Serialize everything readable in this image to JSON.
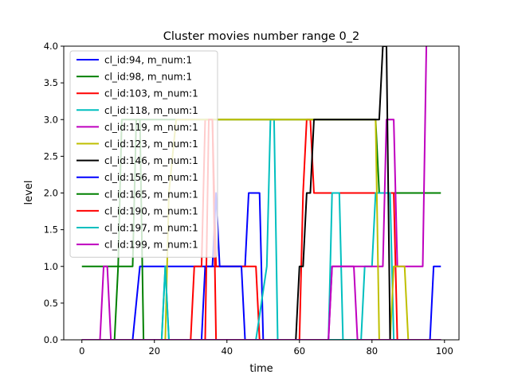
{
  "chart_data": {
    "type": "line",
    "title": "Cluster movies number range 0_2",
    "xlabel": "time",
    "ylabel": "level",
    "xlim": [
      -5,
      104
    ],
    "ylim": [
      0,
      4
    ],
    "xticks": [
      0,
      20,
      40,
      60,
      80,
      100
    ],
    "yticks": [
      0.0,
      0.5,
      1.0,
      1.5,
      2.0,
      2.5,
      3.0,
      3.5,
      4.0
    ],
    "xtick_labels": [
      "0",
      "20",
      "40",
      "60",
      "80",
      "100"
    ],
    "ytick_labels": [
      "0.0",
      "0.5",
      "1.0",
      "1.5",
      "2.0",
      "2.5",
      "3.0",
      "3.5",
      "4.0"
    ],
    "grid": false,
    "legend": "upper-left",
    "series": [
      {
        "name": "cl_id:94, m_num:1",
        "color": "#0000ff",
        "points": [
          [
            0,
            0
          ],
          [
            14,
            0
          ],
          [
            16,
            1
          ],
          [
            45,
            1
          ],
          [
            46,
            2
          ],
          [
            49,
            2
          ],
          [
            50,
            0
          ],
          [
            96,
            0
          ],
          [
            97,
            1
          ],
          [
            99,
            1
          ]
        ]
      },
      {
        "name": "cl_id:98, m_num:1",
        "color": "#008000",
        "points": [
          [
            0,
            1
          ],
          [
            10,
            1
          ],
          [
            11,
            3
          ],
          [
            81,
            3
          ],
          [
            82,
            2
          ],
          [
            99,
            2
          ]
        ]
      },
      {
        "name": "cl_id:103, m_num:1",
        "color": "#ff0000",
        "points": [
          [
            0,
            0
          ],
          [
            30,
            0
          ],
          [
            31,
            1
          ],
          [
            33,
            1
          ],
          [
            34,
            3
          ],
          [
            36,
            3
          ],
          [
            37,
            1
          ],
          [
            48,
            1
          ],
          [
            49,
            0
          ],
          [
            60,
            0
          ],
          [
            61,
            2
          ],
          [
            62,
            3
          ],
          [
            63,
            3
          ],
          [
            64,
            2
          ],
          [
            86,
            2
          ],
          [
            87,
            0
          ],
          [
            99,
            0
          ]
        ]
      },
      {
        "name": "cl_id:118, m_num:1",
        "color": "#00bfbf",
        "points": [
          [
            0,
            0
          ],
          [
            22,
            0
          ],
          [
            23,
            1
          ],
          [
            24,
            0
          ],
          [
            48,
            0
          ],
          [
            51,
            1
          ],
          [
            52,
            3
          ],
          [
            53,
            3
          ],
          [
            54,
            0
          ],
          [
            68,
            0
          ],
          [
            69,
            2
          ],
          [
            71,
            2
          ],
          [
            72,
            0
          ],
          [
            77,
            0
          ],
          [
            78,
            1
          ],
          [
            80,
            1
          ],
          [
            81,
            2
          ],
          [
            85,
            2
          ],
          [
            86,
            0
          ],
          [
            99,
            0
          ]
        ]
      },
      {
        "name": "cl_id:119, m_num:1",
        "color": "#bf00bf",
        "points": [
          [
            0,
            0
          ],
          [
            5,
            0
          ],
          [
            6,
            1
          ],
          [
            7,
            1
          ],
          [
            8,
            0
          ],
          [
            68,
            0
          ],
          [
            69,
            1
          ],
          [
            78,
            1
          ],
          [
            79,
            1
          ],
          [
            83,
            1
          ],
          [
            84,
            3
          ],
          [
            86,
            3
          ],
          [
            87,
            1
          ],
          [
            94,
            1
          ],
          [
            95,
            4
          ]
        ]
      },
      {
        "name": "cl_id:123, m_num:1",
        "color": "#bfbf00",
        "points": [
          [
            0,
            0
          ],
          [
            23,
            0
          ],
          [
            24,
            2
          ],
          [
            26,
            3
          ],
          [
            81,
            3
          ],
          [
            82,
            0
          ],
          [
            85,
            0
          ],
          [
            86,
            1
          ],
          [
            89,
            1
          ],
          [
            90,
            0
          ],
          [
            99,
            0
          ]
        ]
      },
      {
        "name": "cl_id:146, m_num:1",
        "color": "#000000",
        "points": [
          [
            0,
            0
          ],
          [
            59,
            0
          ],
          [
            60,
            1
          ],
          [
            61,
            1
          ],
          [
            62,
            2
          ],
          [
            63,
            2
          ],
          [
            64,
            3
          ],
          [
            82,
            3
          ],
          [
            83,
            4
          ],
          [
            84,
            4
          ],
          [
            85,
            0
          ],
          [
            99,
            0
          ]
        ]
      },
      {
        "name": "cl_id:156, m_num:1",
        "color": "#0000ff",
        "points": [
          [
            0,
            0
          ],
          [
            33,
            0
          ],
          [
            34,
            1
          ],
          [
            36,
            1
          ],
          [
            37,
            2
          ],
          [
            38,
            1
          ],
          [
            44,
            1
          ],
          [
            45,
            0
          ],
          [
            99,
            0
          ]
        ]
      },
      {
        "name": "cl_id:165, m_num:1",
        "color": "#008000",
        "points": [
          [
            0,
            0
          ],
          [
            9,
            0
          ],
          [
            10,
            1
          ],
          [
            14,
            1
          ],
          [
            15,
            3
          ],
          [
            16,
            3
          ],
          [
            17,
            0
          ],
          [
            99,
            0
          ]
        ]
      },
      {
        "name": "cl_id:190, m_num:1",
        "color": "#ff0000",
        "points": [
          [
            0,
            0
          ],
          [
            34,
            0
          ],
          [
            35,
            3
          ],
          [
            36,
            3
          ],
          [
            37,
            0
          ],
          [
            99,
            0
          ]
        ]
      },
      {
        "name": "cl_id:197, m_num:1",
        "color": "#00bfbf",
        "points": [
          [
            0,
            0
          ],
          [
            22,
            0
          ],
          [
            23,
            1
          ],
          [
            24,
            0
          ],
          [
            99,
            0
          ]
        ]
      },
      {
        "name": "cl_id:199, m_num:1",
        "color": "#bf00bf",
        "points": [
          [
            0,
            0
          ],
          [
            68,
            0
          ],
          [
            69,
            1
          ],
          [
            75,
            1
          ],
          [
            76,
            0
          ],
          [
            99,
            0
          ]
        ]
      }
    ]
  }
}
